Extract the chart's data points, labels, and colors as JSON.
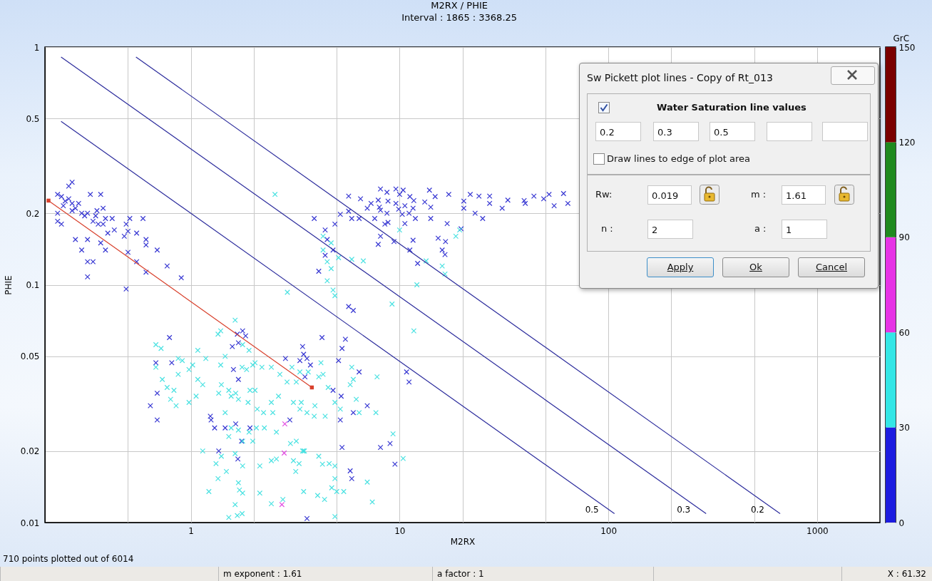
{
  "chart_data": {
    "type": "scatter",
    "title": "M2RX / PHIE",
    "subtitle": "Interval : 1865 : 3368.25",
    "xlabel": "M2RX",
    "ylabel": "PHIE",
    "clabel": "GrC",
    "clim": [
      0,
      150
    ],
    "cticks": [
      0,
      30,
      60,
      90,
      120,
      150
    ],
    "log": "xy",
    "grid": true,
    "marker": "cross",
    "xlim": [
      0.2,
      2000
    ],
    "ylim": [
      0.01,
      1
    ],
    "xticks": [
      {
        "value": 0.5,
        "label": null
      },
      1,
      {
        "value": 2,
        "label": null
      },
      {
        "value": 5,
        "label": null
      },
      10,
      {
        "value": 20,
        "label": null
      },
      {
        "value": 50,
        "label": null
      },
      100,
      {
        "value": 200,
        "label": null
      },
      {
        "value": 500,
        "label": null
      },
      1000
    ],
    "yticks": [
      0.01,
      0.02,
      0.05,
      0.1,
      0.2,
      0.5,
      1
    ],
    "annotations": [
      "710 points plotted out of 6014",
      "m exponent : 1.61",
      "a factor : 1",
      "X : 61.32",
      "Sw Pickett plot lines - Copy of Rt_013",
      "Water Saturation line values",
      "0.2",
      "0.3",
      "0.5",
      "Draw lines to edge of plot area",
      "Rw:",
      "0.019",
      "m :",
      "1.61",
      "n :",
      "2",
      "a :",
      "1",
      "Apply",
      "Ok",
      "Cancel"
    ],
    "series": [
      {
        "color": "#2c2cd0",
        "x": [
          0.27,
          0.26,
          0.23,
          0.24,
          0.25,
          0.245,
          0.27,
          0.28,
          0.3,
          0.31,
          0.33,
          0.37,
          0.23,
          0.23,
          0.24,
          0.34,
          0.355,
          0.38,
          0.39,
          0.42,
          0.43,
          0.38,
          0.4,
          0.28,
          0.32,
          0.3,
          0.32,
          0.34,
          0.32,
          0.37,
          0.39,
          0.49,
          0.51,
          0.5,
          0.48,
          0.55,
          0.59,
          0.61,
          0.61,
          0.69,
          0.5,
          0.55,
          0.61,
          0.77,
          0.9,
          0.49,
          0.26,
          0.29,
          0.27,
          0.32,
          0.35,
          0.36,
          8.1,
          8.7,
          9.6,
          10.4,
          10,
          5.7,
          6.5,
          7.9,
          8.8,
          11.2,
          11.7,
          13.9,
          14.8,
          17.2,
          13.2,
          14.1,
          7.3,
          7,
          8,
          8.1,
          9.6,
          10.6,
          11.6,
          9.9,
          10.3,
          11.1,
          11.9,
          8.7,
          7.6,
          6.4,
          5.9,
          5.7,
          5.2,
          4.9,
          3.9,
          4.4,
          4.5,
          4.8,
          4.4,
          4.1,
          8.5,
          8.8,
          10.6,
          8.1,
          7.9,
          9.4,
          11.6,
          11.2,
          12.2,
          15.3,
          16.6,
          16,
          16.5,
          14.1,
          16.9,
          19.7,
          20.3,
          20.3,
          21.8,
          24,
          27,
          27,
          23,
          25,
          31,
          33,
          39.5,
          40,
          44,
          49,
          52,
          55,
          61,
          64,
          5.7,
          6,
          0.79,
          0.68,
          0.81,
          0.69,
          0.64,
          0.69,
          1.67,
          1.77,
          1.83,
          1.58,
          1.69,
          1.6,
          1.69,
          1.24,
          1.25,
          1.3,
          1.46,
          1.64,
          1.75,
          1.92,
          1.36,
          1.68,
          2.84,
          3.43,
          3.47,
          3.33,
          3.6,
          3.74,
          3.52,
          4.25,
          5.5,
          5.3,
          5.1,
          6.4,
          4.8,
          5.25,
          6,
          7,
          5.2,
          2.98,
          5.3,
          8.1,
          9,
          9.5,
          5.8,
          5.9,
          3.6,
          10.8,
          11.1
        ],
        "values": [
          0.27,
          0.26,
          0.24,
          0.235,
          0.225,
          0.215,
          0.22,
          0.21,
          0.2,
          0.195,
          0.24,
          0.24,
          0.2,
          0.185,
          0.18,
          0.185,
          0.205,
          0.21,
          0.19,
          0.19,
          0.17,
          0.18,
          0.165,
          0.155,
          0.155,
          0.14,
          0.125,
          0.125,
          0.108,
          0.15,
          0.14,
          0.18,
          0.19,
          0.168,
          0.16,
          0.165,
          0.19,
          0.155,
          0.147,
          0.14,
          0.137,
          0.125,
          0.113,
          0.12,
          0.107,
          0.096,
          0.23,
          0.22,
          0.205,
          0.2,
          0.195,
          0.18,
          0.253,
          0.245,
          0.253,
          0.25,
          0.24,
          0.236,
          0.23,
          0.227,
          0.225,
          0.235,
          0.226,
          0.25,
          0.235,
          0.24,
          0.223,
          0.212,
          0.22,
          0.21,
          0.212,
          0.206,
          0.22,
          0.215,
          0.21,
          0.208,
          0.198,
          0.2,
          0.19,
          0.2,
          0.19,
          0.19,
          0.19,
          0.204,
          0.198,
          0.18,
          0.19,
          0.17,
          0.155,
          0.14,
          0.133,
          0.114,
          0.18,
          0.183,
          0.181,
          0.16,
          0.148,
          0.152,
          0.154,
          0.14,
          0.123,
          0.157,
          0.152,
          0.14,
          0.134,
          0.19,
          0.181,
          0.172,
          0.225,
          0.21,
          0.24,
          0.236,
          0.236,
          0.22,
          0.2,
          0.19,
          0.21,
          0.227,
          0.226,
          0.22,
          0.236,
          0.23,
          0.24,
          0.215,
          0.242,
          0.22,
          0.081,
          0.078,
          0.06,
          0.047,
          0.047,
          0.035,
          0.031,
          0.027,
          0.062,
          0.064,
          0.061,
          0.055,
          0.057,
          0.044,
          0.04,
          0.028,
          0.027,
          0.025,
          0.025,
          0.026,
          0.022,
          0.025,
          0.02,
          0.0185,
          0.049,
          0.055,
          0.051,
          0.048,
          0.049,
          0.046,
          0.041,
          0.06,
          0.059,
          0.054,
          0.048,
          0.043,
          0.036,
          0.034,
          0.029,
          0.031,
          0.027,
          0.027,
          0.0207,
          0.0207,
          0.0215,
          0.0176,
          0.0165,
          0.0153,
          0.0104,
          0.043,
          0.039
        ]
      },
      {
        "color": "#e040e0",
        "x": [
          2.82,
          2.8,
          2.73
        ],
        "values": [
          0.026,
          0.0196,
          0.0119
        ]
      },
      {
        "color": "#40e0e0",
        "x": [
          4.3,
          4.7,
          4.3,
          4.5,
          5.1,
          5.9,
          6.7,
          4.7,
          4.5,
          4.8,
          4.9,
          10,
          13.4,
          16,
          16.5,
          12.1,
          9.2,
          18.6,
          19.4,
          2.53,
          2.9,
          0.68,
          0.72,
          0.68,
          0.87,
          0.91,
          0.87,
          0.73,
          0.77,
          0.83,
          0.8,
          0.85,
          0.98,
          1.02,
          0.98,
          1.08,
          1.18,
          1.39,
          1.35,
          1.63,
          1.46,
          1.39,
          1.08,
          1.14,
          1.06,
          1.4,
          1.36,
          1.52,
          1.56,
          1.64,
          1.69,
          1.76,
          1.85,
          1.9,
          1.77,
          1.98,
          2.03,
          2.19,
          2.43,
          2.67,
          3.05,
          2.89,
          3.2,
          3.33,
          3.65,
          4.1,
          4.3,
          4.2,
          4.55,
          1.88,
          1.92,
          2.03,
          2.23,
          2.08,
          2.43,
          2.47,
          2.63,
          3.1,
          3.38,
          3.33,
          3.6,
          3.9,
          3.93,
          4.4,
          5.2,
          4.9,
          6.2,
          6.4,
          7.7,
          7.8,
          5.9,
          6,
          5.8,
          1.46,
          1.52,
          1.56,
          1.69,
          1.77,
          1.9,
          1.98,
          2.06,
          2.25,
          2.57,
          3,
          3.2,
          3.47,
          1.14,
          1.4,
          1.32,
          1.48,
          1.35,
          1.63,
          1.77,
          2.14,
          2.43,
          2.57,
          3.1,
          3.3,
          3.18,
          3.43,
          3.5,
          4.1,
          4.27,
          4.6,
          4.9,
          4.9,
          4.73,
          5,
          5.4,
          7,
          7.4,
          9.3,
          10.4,
          1.22,
          1.77,
          1.71,
          1.69,
          2.14,
          1.63,
          1.52,
          1.67,
          1.76,
          2.43,
          2.76,
          3.47,
          4.05,
          4.37,
          4.9,
          11.7
        ],
        "values": [
          0.16,
          0.15,
          0.14,
          0.125,
          0.13,
          0.128,
          0.126,
          0.117,
          0.104,
          0.095,
          0.09,
          0.17,
          0.126,
          0.12,
          0.111,
          0.1,
          0.083,
          0.16,
          0.17,
          0.24,
          0.093,
          0.056,
          0.054,
          0.045,
          0.049,
          0.048,
          0.042,
          0.04,
          0.037,
          0.036,
          0.033,
          0.031,
          0.032,
          0.046,
          0.044,
          0.053,
          0.049,
          0.064,
          0.062,
          0.071,
          0.05,
          0.046,
          0.04,
          0.038,
          0.034,
          0.038,
          0.035,
          0.036,
          0.034,
          0.035,
          0.033,
          0.045,
          0.044,
          0.053,
          0.056,
          0.046,
          0.047,
          0.045,
          0.045,
          0.042,
          0.045,
          0.039,
          0.039,
          0.043,
          0.043,
          0.041,
          0.042,
          0.047,
          0.037,
          0.032,
          0.036,
          0.036,
          0.029,
          0.03,
          0.032,
          0.029,
          0.034,
          0.032,
          0.032,
          0.03,
          0.029,
          0.028,
          0.031,
          0.028,
          0.03,
          0.032,
          0.033,
          0.029,
          0.029,
          0.041,
          0.045,
          0.04,
          0.038,
          0.029,
          0.023,
          0.025,
          0.0245,
          0.022,
          0.024,
          0.022,
          0.025,
          0.025,
          0.024,
          0.0215,
          0.022,
          0.02,
          0.02,
          0.019,
          0.0177,
          0.0164,
          0.0153,
          0.0195,
          0.0173,
          0.0173,
          0.0182,
          0.0185,
          0.0182,
          0.0177,
          0.0164,
          0.02,
          0.02,
          0.019,
          0.0176,
          0.0177,
          0.0173,
          0.0153,
          0.014,
          0.0135,
          0.0135,
          0.0148,
          0.0122,
          0.0236,
          0.0186,
          0.0135,
          0.0133,
          0.0137,
          0.0147,
          0.0133,
          0.0119,
          0.0105,
          0.0107,
          0.0109,
          0.012,
          0.0125,
          0.0135,
          0.013,
          0.0125,
          0.0106,
          0.064
        ]
      },
      {
        "type": "line",
        "name": "0.5",
        "color": "#2b2b9c",
        "marker": "none",
        "x": [
          0.239,
          107
        ],
        "values": [
          0.487,
          0.0109
        ]
      },
      {
        "type": "line",
        "name": "0.3",
        "color": "#2b2b9c",
        "marker": "none",
        "x": [
          0.239,
          294
        ],
        "values": [
          0.908,
          0.0109
        ]
      },
      {
        "type": "line",
        "name": "0.2",
        "color": "#2b2b9c",
        "marker": "none",
        "x": [
          0.546,
          665
        ],
        "values": [
          0.908,
          0.0109
        ]
      },
      {
        "type": "line",
        "color": "#d8402c",
        "marker": "square",
        "x": [
          0.208,
          3.8
        ],
        "values": [
          0.226,
          0.037
        ]
      }
    ]
  }
}
